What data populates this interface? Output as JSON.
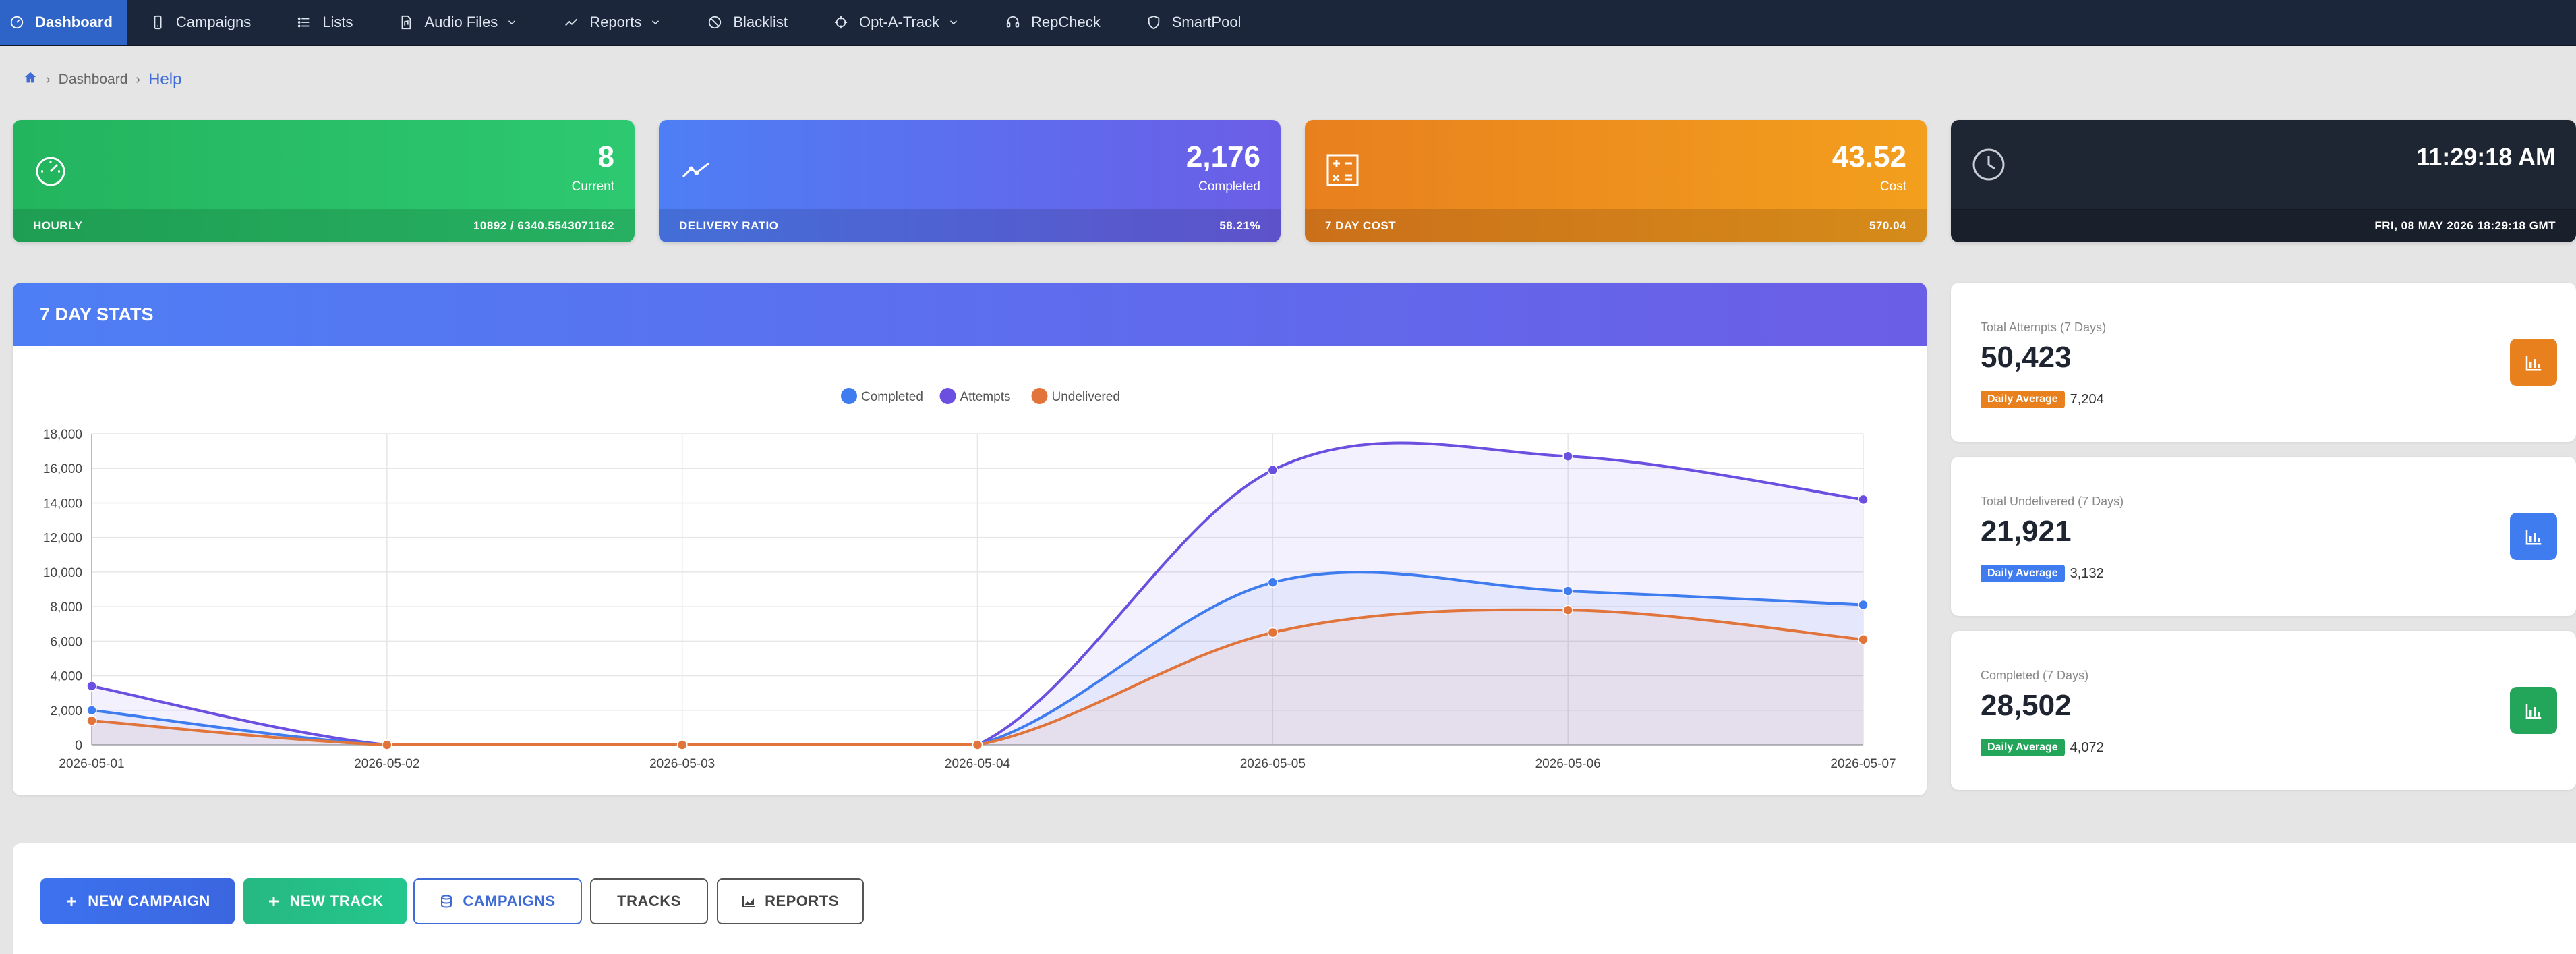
{
  "nav": {
    "items": [
      {
        "label": "Dashboard",
        "icon": "gauge-icon",
        "active": true
      },
      {
        "label": "Campaigns",
        "icon": "phone-icon"
      },
      {
        "label": "Lists",
        "icon": "list-icon"
      },
      {
        "label": "Audio Files",
        "icon": "audio-file-icon",
        "dropdown": true
      },
      {
        "label": "Reports",
        "icon": "chart-line-icon",
        "dropdown": true
      },
      {
        "label": "Blacklist",
        "icon": "ban-icon"
      },
      {
        "label": "Opt-A-Track",
        "icon": "crosshair-icon",
        "dropdown": true
      },
      {
        "label": "RepCheck",
        "icon": "headset-icon"
      },
      {
        "label": "SmartPool",
        "icon": "shield-icon"
      }
    ]
  },
  "breadcrumb": {
    "items": [
      "Dashboard",
      "Help"
    ]
  },
  "cards": {
    "hourly": {
      "value": "8",
      "sub": "Current",
      "foot_label": "HOURLY",
      "foot_value": "10892 / 6340.5543071162",
      "icon": "speedometer-icon"
    },
    "delivery": {
      "value": "2,176",
      "sub": "Completed",
      "foot_label": "DELIVERY RATIO",
      "foot_value": "58.21%",
      "icon": "trend-line-icon"
    },
    "cost": {
      "value": "43.52",
      "sub": "Cost",
      "foot_label": "7 DAY COST",
      "foot_value": "570.04",
      "icon": "calculator-icon"
    },
    "clock": {
      "value": "11:29:18 AM",
      "foot_value": "FRI, 08 MAY 2026 18:29:18 GMT",
      "icon": "clock-icon"
    }
  },
  "stats_panel": {
    "title": "7 DAY STATS"
  },
  "chart_data": {
    "type": "line",
    "title": "",
    "x": [
      "2026-05-01",
      "2026-05-02",
      "2026-05-03",
      "2026-05-04",
      "2026-05-05",
      "2026-05-06",
      "2026-05-07"
    ],
    "ylim": [
      0,
      18000
    ],
    "yticks": [
      0,
      2000,
      4000,
      6000,
      8000,
      10000,
      12000,
      14000,
      16000,
      18000
    ],
    "ytick_labels": [
      "0",
      "2,000",
      "4,000",
      "6,000",
      "8,000",
      "10,000",
      "12,000",
      "14,000",
      "16,000",
      "18,000"
    ],
    "grid": true,
    "legend_position": "top-center",
    "series": [
      {
        "name": "Completed",
        "color": "#3f7cf0",
        "values": [
          2000,
          0,
          0,
          0,
          9400,
          8900,
          8100
        ]
      },
      {
        "name": "Attempts",
        "color": "#6a4fe0",
        "values": [
          3400,
          0,
          0,
          0,
          15900,
          16700,
          14200
        ]
      },
      {
        "name": "Undelivered",
        "color": "#e0743a",
        "values": [
          1400,
          0,
          0,
          0,
          6500,
          7800,
          6100
        ]
      }
    ]
  },
  "side_cards": [
    {
      "label": "Total Attempts (7 Days)",
      "value": "50,423",
      "badge": "Daily Average",
      "avg": "7,204",
      "color": "#e8801e",
      "icon": "bar-chart-icon"
    },
    {
      "label": "Total Undelivered (7 Days)",
      "value": "21,921",
      "badge": "Daily Average",
      "avg": "3,132",
      "color": "#3f7cf0",
      "icon": "bar-chart-icon"
    },
    {
      "label": "Completed (7 Days)",
      "value": "28,502",
      "badge": "Daily Average",
      "avg": "4,072",
      "color": "#23a55a",
      "icon": "bar-chart-icon"
    }
  ],
  "actions": {
    "new_campaign": "NEW CAMPAIGN",
    "new_track": "NEW TRACK",
    "campaigns": "CAMPAIGNS",
    "tracks": "TRACKS",
    "reports": "REPORTS"
  }
}
